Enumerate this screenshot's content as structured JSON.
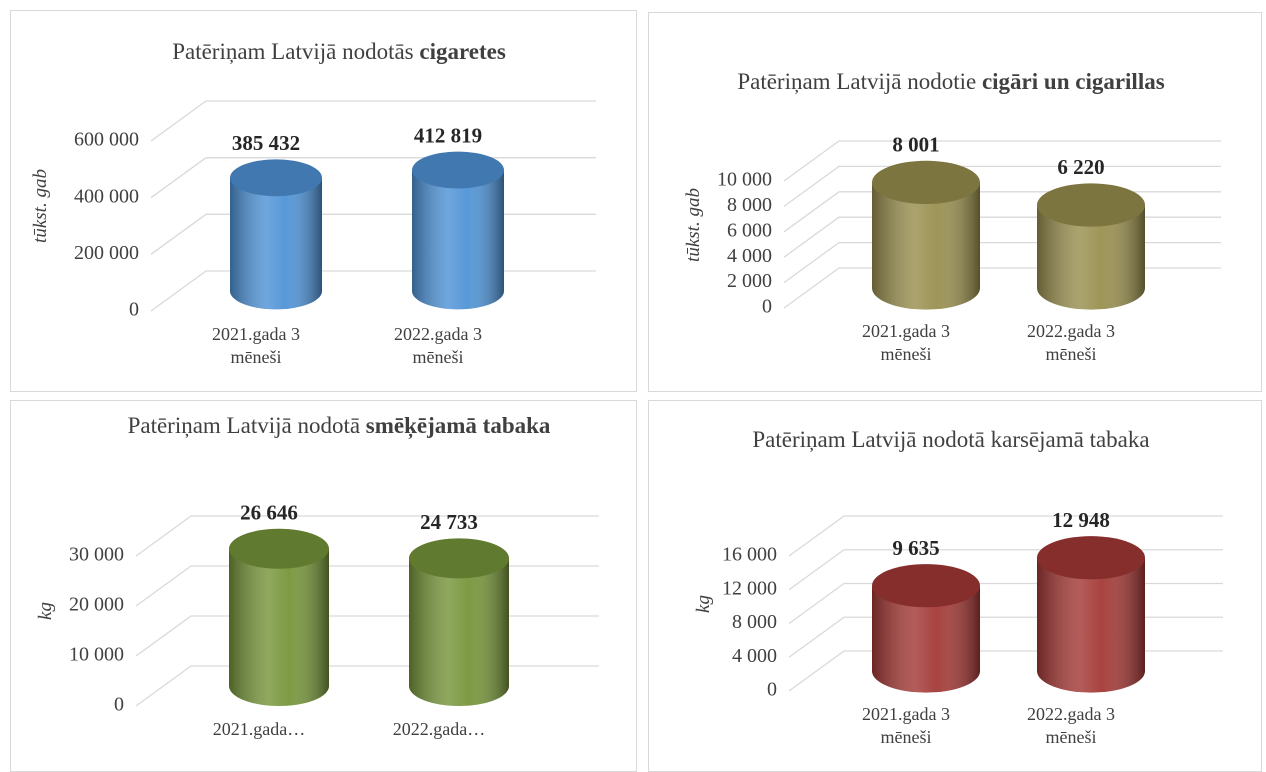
{
  "chart_data": [
    {
      "type": "bar",
      "title": [
        {
          "text": "Patēriņam Latvijā nodotās"
        },
        {
          "text": "cigaretes",
          "bold": true
        }
      ],
      "y_label": "tūkst. gab",
      "categories": [
        "2021.gada 3 mēneši",
        "2022.gada 3 mēneši"
      ],
      "values": [
        385432,
        412819
      ],
      "value_labels": [
        "385 432",
        "412 819"
      ],
      "color": "#4f93d6",
      "ylim": [
        0,
        600000
      ],
      "yticks": [
        0,
        {
          "value": 200000,
          "label": "200 000"
        },
        {
          "value": 400000,
          "label": "400 000"
        },
        {
          "value": 600000,
          "label": "600 000"
        }
      ],
      "grid": true
    },
    {
      "type": "bar",
      "title": [
        {
          "text": "Patēriņam Latvijā nodotie"
        },
        {
          "text": "cigāri un cigarillas",
          "bold": true
        }
      ],
      "y_label": "tūkst. gab",
      "categories": [
        "2021.gada 3 mēneši",
        "2022.gada 3 mēneši"
      ],
      "values": [
        8001,
        6220
      ],
      "value_labels": [
        "8 001",
        "6 220"
      ],
      "color": "#998f4f",
      "ylim": [
        0,
        10000
      ],
      "yticks": [
        0,
        {
          "value": 2000,
          "label": "2 000"
        },
        {
          "value": 4000,
          "label": "4 000"
        },
        {
          "value": 6000,
          "label": "6 000"
        },
        {
          "value": 8000,
          "label": "8 000"
        },
        {
          "value": 10000,
          "label": "10 000"
        }
      ],
      "grid": true
    },
    {
      "type": "bar",
      "title": [
        {
          "text": "Patēriņam Latvijā nodotā"
        },
        {
          "text": "smēķējamā tabaka",
          "bold": true
        }
      ],
      "y_label": "kg",
      "categories": [
        "2021.gada…",
        "2022.gada…"
      ],
      "values": [
        26646,
        24733
      ],
      "value_labels": [
        "26 646",
        "24 733"
      ],
      "color": "#76953a",
      "ylim": [
        0,
        30000
      ],
      "yticks": [
        0,
        {
          "value": 10000,
          "label": "10 000"
        },
        {
          "value": 20000,
          "label": "20 000"
        },
        {
          "value": 30000,
          "label": "30 000"
        }
      ],
      "grid": true
    },
    {
      "type": "bar",
      "title": [
        {
          "text": "Patēriņam Latvijā nodotā karsējamā tabaka"
        }
      ],
      "y_label": "kg",
      "categories": [
        "2021.gada 3 mēneši",
        "2022.gada 3 mēneši"
      ],
      "values": [
        9635,
        12948
      ],
      "value_labels": [
        "9 635",
        "12 948"
      ],
      "color": "#a33936",
      "ylim": [
        0,
        16000
      ],
      "yticks": [
        0,
        {
          "value": 4000,
          "label": "4 000"
        },
        {
          "value": 8000,
          "label": "8 000"
        },
        {
          "value": 12000,
          "label": "12 000"
        },
        {
          "value": 16000,
          "label": "16 000"
        }
      ],
      "grid": true
    }
  ]
}
